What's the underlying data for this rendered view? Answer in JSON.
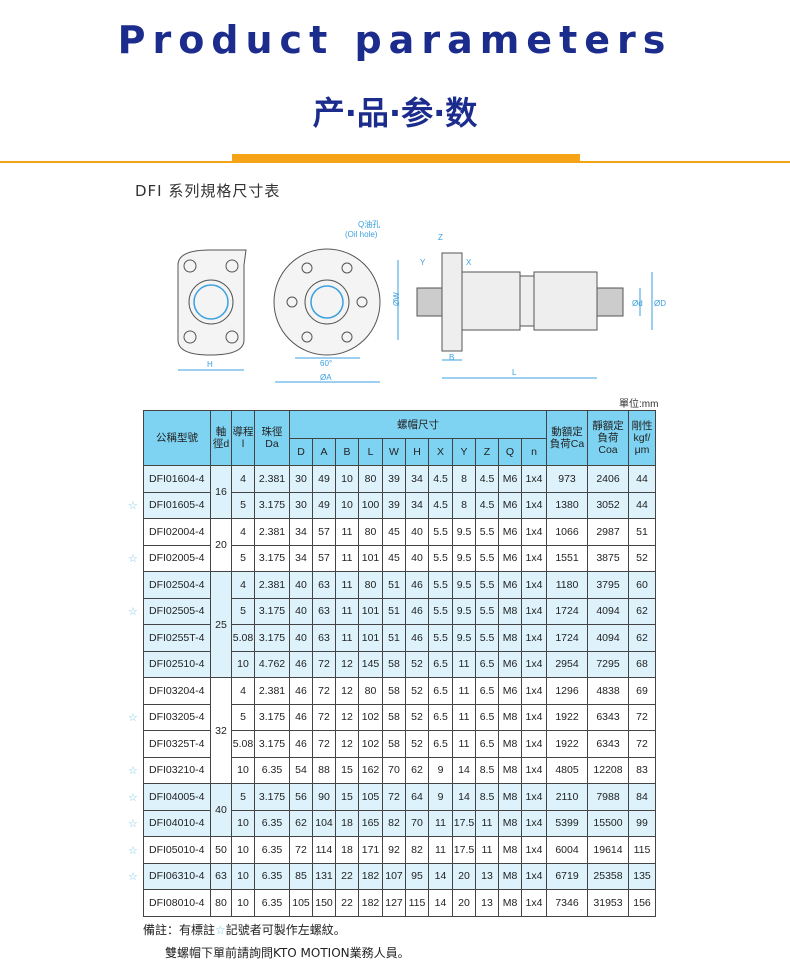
{
  "header": {
    "title": "Product parameters",
    "subtitle": "产·品·参·数",
    "section": "DFI 系列規格尺寸表"
  },
  "colors": {
    "title": "#1b2c8c",
    "accent": "#f5a418",
    "table_header": "#7fd3f2",
    "row_blue": "#ddf2fb",
    "star": "#7fc6ea"
  },
  "diagram": {
    "oil_hole": "Q油孔",
    "oil_hole_en": "(Oil hole)",
    "H": "H",
    "angle": "60°",
    "A": "ØA",
    "W": "ØW",
    "Z": "Z",
    "Y": "Y",
    "X": "X",
    "B": "B",
    "L": "L",
    "d": "Ød",
    "D": "ØD"
  },
  "unit": "單位:mm",
  "table": {
    "headers": {
      "model": "公稱型號",
      "d": "軸徑d",
      "l": "導程l",
      "da": "珠徑Da",
      "nut": "螺帽尺寸",
      "ca": "動額定負荷Ca",
      "coa": "靜額定負荷Coa",
      "rigidity": "剛性kgf/μm",
      "nut_cols": [
        "D",
        "A",
        "B",
        "L",
        "W",
        "H",
        "X",
        "Y",
        "Z",
        "Q",
        "n"
      ]
    },
    "star_symbol": "☆",
    "groups": [
      {
        "d": "16",
        "rows": [
          {
            "model": "DFI01604-4",
            "star": false,
            "v": [
              "4",
              "2.381",
              "30",
              "49",
              "10",
              "80",
              "39",
              "34",
              "4.5",
              "8",
              "4.5",
              "M6",
              "1x4",
              "973",
              "2406",
              "44"
            ]
          },
          {
            "model": "DFI01605-4",
            "star": true,
            "v": [
              "5",
              "3.175",
              "30",
              "49",
              "10",
              "100",
              "39",
              "34",
              "4.5",
              "8",
              "4.5",
              "M6",
              "1x4",
              "1380",
              "3052",
              "44"
            ]
          }
        ]
      },
      {
        "d": "20",
        "rows": [
          {
            "model": "DFI02004-4",
            "star": false,
            "v": [
              "4",
              "2.381",
              "34",
              "57",
              "11",
              "80",
              "45",
              "40",
              "5.5",
              "9.5",
              "5.5",
              "M6",
              "1x4",
              "1066",
              "2987",
              "51"
            ]
          },
          {
            "model": "DFI02005-4",
            "star": true,
            "v": [
              "5",
              "3.175",
              "34",
              "57",
              "11",
              "101",
              "45",
              "40",
              "5.5",
              "9.5",
              "5.5",
              "M6",
              "1x4",
              "1551",
              "3875",
              "52"
            ]
          }
        ]
      },
      {
        "d": "25",
        "rows": [
          {
            "model": "DFI02504-4",
            "star": false,
            "v": [
              "4",
              "2.381",
              "40",
              "63",
              "11",
              "80",
              "51",
              "46",
              "5.5",
              "9.5",
              "5.5",
              "M6",
              "1x4",
              "1180",
              "3795",
              "60"
            ]
          },
          {
            "model": "DFI02505-4",
            "star": true,
            "v": [
              "5",
              "3.175",
              "40",
              "63",
              "11",
              "101",
              "51",
              "46",
              "5.5",
              "9.5",
              "5.5",
              "M8",
              "1x4",
              "1724",
              "4094",
              "62"
            ]
          },
          {
            "model": "DFI0255T-4",
            "star": false,
            "v": [
              "5.08",
              "3.175",
              "40",
              "63",
              "11",
              "101",
              "51",
              "46",
              "5.5",
              "9.5",
              "5.5",
              "M8",
              "1x4",
              "1724",
              "4094",
              "62"
            ]
          },
          {
            "model": "DFI02510-4",
            "star": false,
            "v": [
              "10",
              "4.762",
              "46",
              "72",
              "12",
              "145",
              "58",
              "52",
              "6.5",
              "11",
              "6.5",
              "M6",
              "1x4",
              "2954",
              "7295",
              "68"
            ]
          }
        ]
      },
      {
        "d": "32",
        "rows": [
          {
            "model": "DFI03204-4",
            "star": false,
            "v": [
              "4",
              "2.381",
              "46",
              "72",
              "12",
              "80",
              "58",
              "52",
              "6.5",
              "11",
              "6.5",
              "M6",
              "1x4",
              "1296",
              "4838",
              "69"
            ]
          },
          {
            "model": "DFI03205-4",
            "star": true,
            "v": [
              "5",
              "3.175",
              "46",
              "72",
              "12",
              "102",
              "58",
              "52",
              "6.5",
              "11",
              "6.5",
              "M8",
              "1x4",
              "1922",
              "6343",
              "72"
            ]
          },
          {
            "model": "DFI0325T-4",
            "star": false,
            "v": [
              "5.08",
              "3.175",
              "46",
              "72",
              "12",
              "102",
              "58",
              "52",
              "6.5",
              "11",
              "6.5",
              "M8",
              "1x4",
              "1922",
              "6343",
              "72"
            ]
          },
          {
            "model": "DFI03210-4",
            "star": true,
            "v": [
              "10",
              "6.35",
              "54",
              "88",
              "15",
              "162",
              "70",
              "62",
              "9",
              "14",
              "8.5",
              "M8",
              "1x4",
              "4805",
              "12208",
              "83"
            ]
          }
        ]
      },
      {
        "d": "40",
        "rows": [
          {
            "model": "DFI04005-4",
            "star": true,
            "v": [
              "5",
              "3.175",
              "56",
              "90",
              "15",
              "105",
              "72",
              "64",
              "9",
              "14",
              "8.5",
              "M8",
              "1x4",
              "2110",
              "7988",
              "84"
            ]
          },
          {
            "model": "DFI04010-4",
            "star": true,
            "v": [
              "10",
              "6.35",
              "62",
              "104",
              "18",
              "165",
              "82",
              "70",
              "11",
              "17.5",
              "11",
              "M8",
              "1x4",
              "5399",
              "15500",
              "99"
            ]
          }
        ]
      },
      {
        "d": "50",
        "rows": [
          {
            "model": "DFI05010-4",
            "star": true,
            "v": [
              "10",
              "6.35",
              "72",
              "114",
              "18",
              "171",
              "92",
              "82",
              "11",
              "17.5",
              "11",
              "M8",
              "1x4",
              "6004",
              "19614",
              "115"
            ]
          }
        ]
      },
      {
        "d": "63",
        "rows": [
          {
            "model": "DFI06310-4",
            "star": true,
            "v": [
              "10",
              "6.35",
              "85",
              "131",
              "22",
              "182",
              "107",
              "95",
              "14",
              "20",
              "13",
              "M8",
              "1x4",
              "6719",
              "25358",
              "135"
            ]
          }
        ]
      },
      {
        "d": "80",
        "rows": [
          {
            "model": "DFI08010-4",
            "star": false,
            "v": [
              "10",
              "6.35",
              "105",
              "150",
              "22",
              "182",
              "127",
              "115",
              "14",
              "20",
              "13",
              "M8",
              "1x4",
              "7346",
              "31953",
              "156"
            ]
          }
        ]
      }
    ]
  },
  "notes": {
    "line1_a": "備註：有標註",
    "line1_star": "☆",
    "line1_b": "記號者可製作左螺紋。",
    "line2": "雙螺帽下單前請詢問KTO MOTION業務人員。"
  }
}
